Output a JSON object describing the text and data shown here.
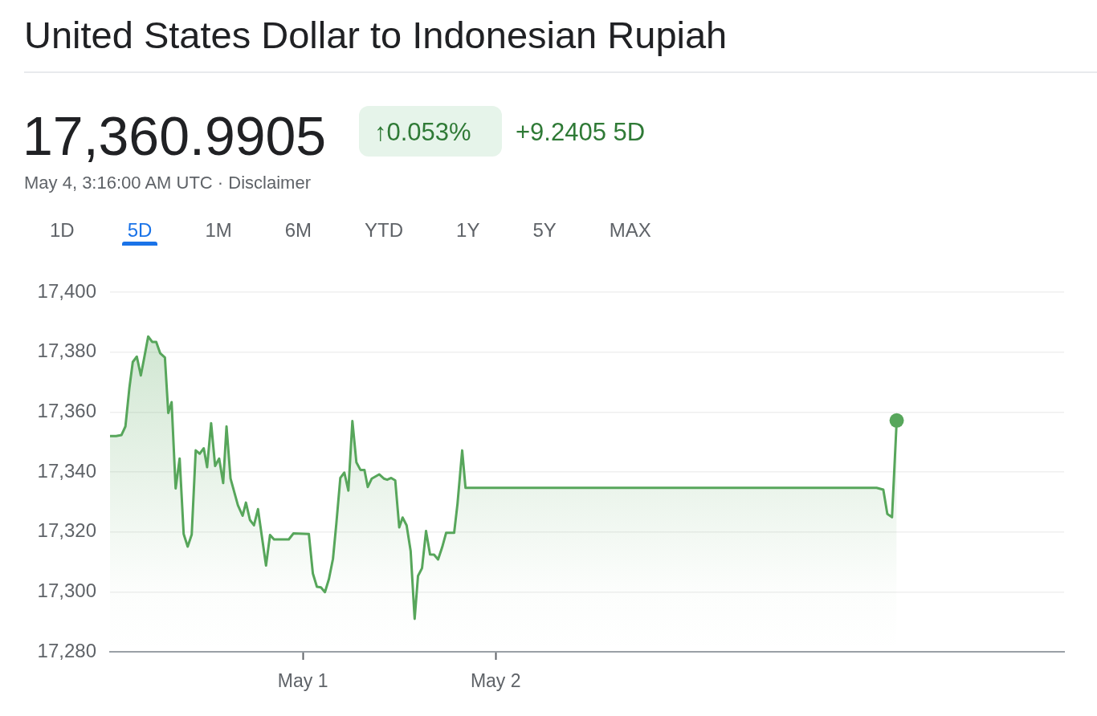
{
  "chart_data": {
    "type": "area",
    "title": "United States Dollar to Indonesian Rupiah",
    "annotations": [
      "17,360.9905",
      "↑0.053%",
      "+9.2405 5D",
      "May 4, 3:16:00 AM UTC · Disclaimer",
      "1D",
      "5D",
      "1M",
      "6M",
      "YTD",
      "1Y",
      "5Y",
      "MAX"
    ],
    "xlim": [
      "--04-30T00:00",
      "--05-04T22:45"
    ],
    "xticks": [
      {
        "value": "--05-01",
        "label": "May 1"
      },
      {
        "value": "--05-02",
        "label": "May 2"
      }
    ],
    "ylim": [
      17280,
      17400
    ],
    "yticks": [
      {
        "value": 17280,
        "label": "17,280"
      },
      {
        "value": 17300,
        "label": "17,300"
      },
      {
        "value": 17320,
        "label": "17,320"
      },
      {
        "value": 17340,
        "label": "17,340"
      },
      {
        "value": 17360,
        "label": "17,360"
      },
      {
        "value": 17380,
        "label": "17,380"
      },
      {
        "value": 17400,
        "label": "17,400"
      }
    ],
    "grid": "y",
    "series": [
      {
        "color": "#57a65b",
        "x": [
          "--04-30T00:00",
          "--04-30T00:45",
          "--04-30T01:25",
          "--04-30T01:55",
          "--04-30T02:25",
          "--04-30T02:50",
          "--04-30T03:20",
          "--04-30T03:50",
          "--04-30T04:15",
          "--04-30T04:45",
          "--04-30T05:15",
          "--04-30T05:45",
          "--04-30T06:15",
          "--04-30T06:50",
          "--04-30T07:15",
          "--04-30T07:40",
          "--04-30T08:10",
          "--04-30T08:40",
          "--04-30T09:10",
          "--04-30T09:40",
          "--04-30T10:10",
          "--04-30T10:40",
          "--04-30T11:10",
          "--04-30T11:40",
          "--04-30T12:05",
          "--04-30T12:35",
          "--04-30T13:05",
          "--04-30T13:35",
          "--04-30T14:05",
          "--04-30T14:30",
          "--04-30T15:00",
          "--04-30T15:55",
          "--04-30T16:30",
          "--04-30T16:55",
          "--04-30T17:25",
          "--04-30T17:55",
          "--04-30T18:25",
          "--04-30T19:25",
          "--04-30T19:55",
          "--04-30T20:25",
          "--04-30T22:15",
          "--04-30T22:50",
          "--05-01T00:45",
          "--05-01T01:15",
          "--05-01T01:45",
          "--05-01T02:15",
          "--05-01T02:45",
          "--05-01T03:15",
          "--05-01T03:45",
          "--05-01T04:10",
          "--05-01T04:40",
          "--05-01T05:10",
          "--05-01T05:40",
          "--05-01T06:10",
          "--05-01T06:40",
          "--05-01T07:10",
          "--05-01T07:40",
          "--05-01T08:05",
          "--05-01T08:35",
          "--05-01T09:30",
          "--05-01T10:05",
          "--05-01T10:30",
          "--05-01T11:00",
          "--05-01T11:30",
          "--05-01T12:00",
          "--05-01T12:25",
          "--05-01T12:55",
          "--05-01T13:25",
          "--05-01T13:55",
          "--05-01T14:20",
          "--05-01T14:50",
          "--05-01T15:20",
          "--05-01T15:50",
          "--05-01T16:20",
          "--05-01T16:50",
          "--05-01T17:20",
          "--05-01T17:50",
          "--05-01T18:50",
          "--05-01T19:15",
          "--05-01T19:50",
          "--05-01T20:15",
          "--05-03T23:25",
          "--05-04T00:15",
          "--05-04T00:45",
          "--05-04T01:20",
          "--05-04T01:55"
        ],
        "values": [
          17352.0,
          17352.0,
          17352.3,
          17355.2,
          17368.2,
          17376.7,
          17378.5,
          17372.2,
          17378.0,
          17385.2,
          17383.4,
          17383.4,
          17379.6,
          17378.2,
          17359.7,
          17363.3,
          17334.5,
          17344.5,
          17319.3,
          17315.1,
          17319.1,
          17347.2,
          17346.1,
          17347.9,
          17341.6,
          17356.3,
          17342.0,
          17344.5,
          17336.3,
          17355.2,
          17337.8,
          17328.9,
          17325.4,
          17329.8,
          17324.0,
          17322.2,
          17327.6,
          17308.8,
          17319.0,
          17317.5,
          17317.5,
          17319.5,
          17319.3,
          17306.1,
          17301.7,
          17301.5,
          17299.9,
          17304.3,
          17311.0,
          17322.7,
          17338.0,
          17339.8,
          17333.8,
          17357.0,
          17343.2,
          17340.7,
          17340.7,
          17335.0,
          17337.8,
          17339.2,
          17337.8,
          17337.4,
          17338.0,
          17337.2,
          17321.5,
          17324.8,
          17322.2,
          17313.7,
          17291.0,
          17305.3,
          17307.9,
          17320.3,
          17312.5,
          17312.4,
          17310.8,
          17314.8,
          17319.7,
          17319.7,
          17329.4,
          17347.2,
          17334.7,
          17334.7,
          17334.1,
          17326.0,
          17324.9,
          17357.2
        ]
      },
      {
        "type": "scatter",
        "color": "#57a65b",
        "marker": "circle",
        "x": [
          "--05-04T01:55"
        ],
        "values": [
          17357.2
        ]
      }
    ]
  }
}
